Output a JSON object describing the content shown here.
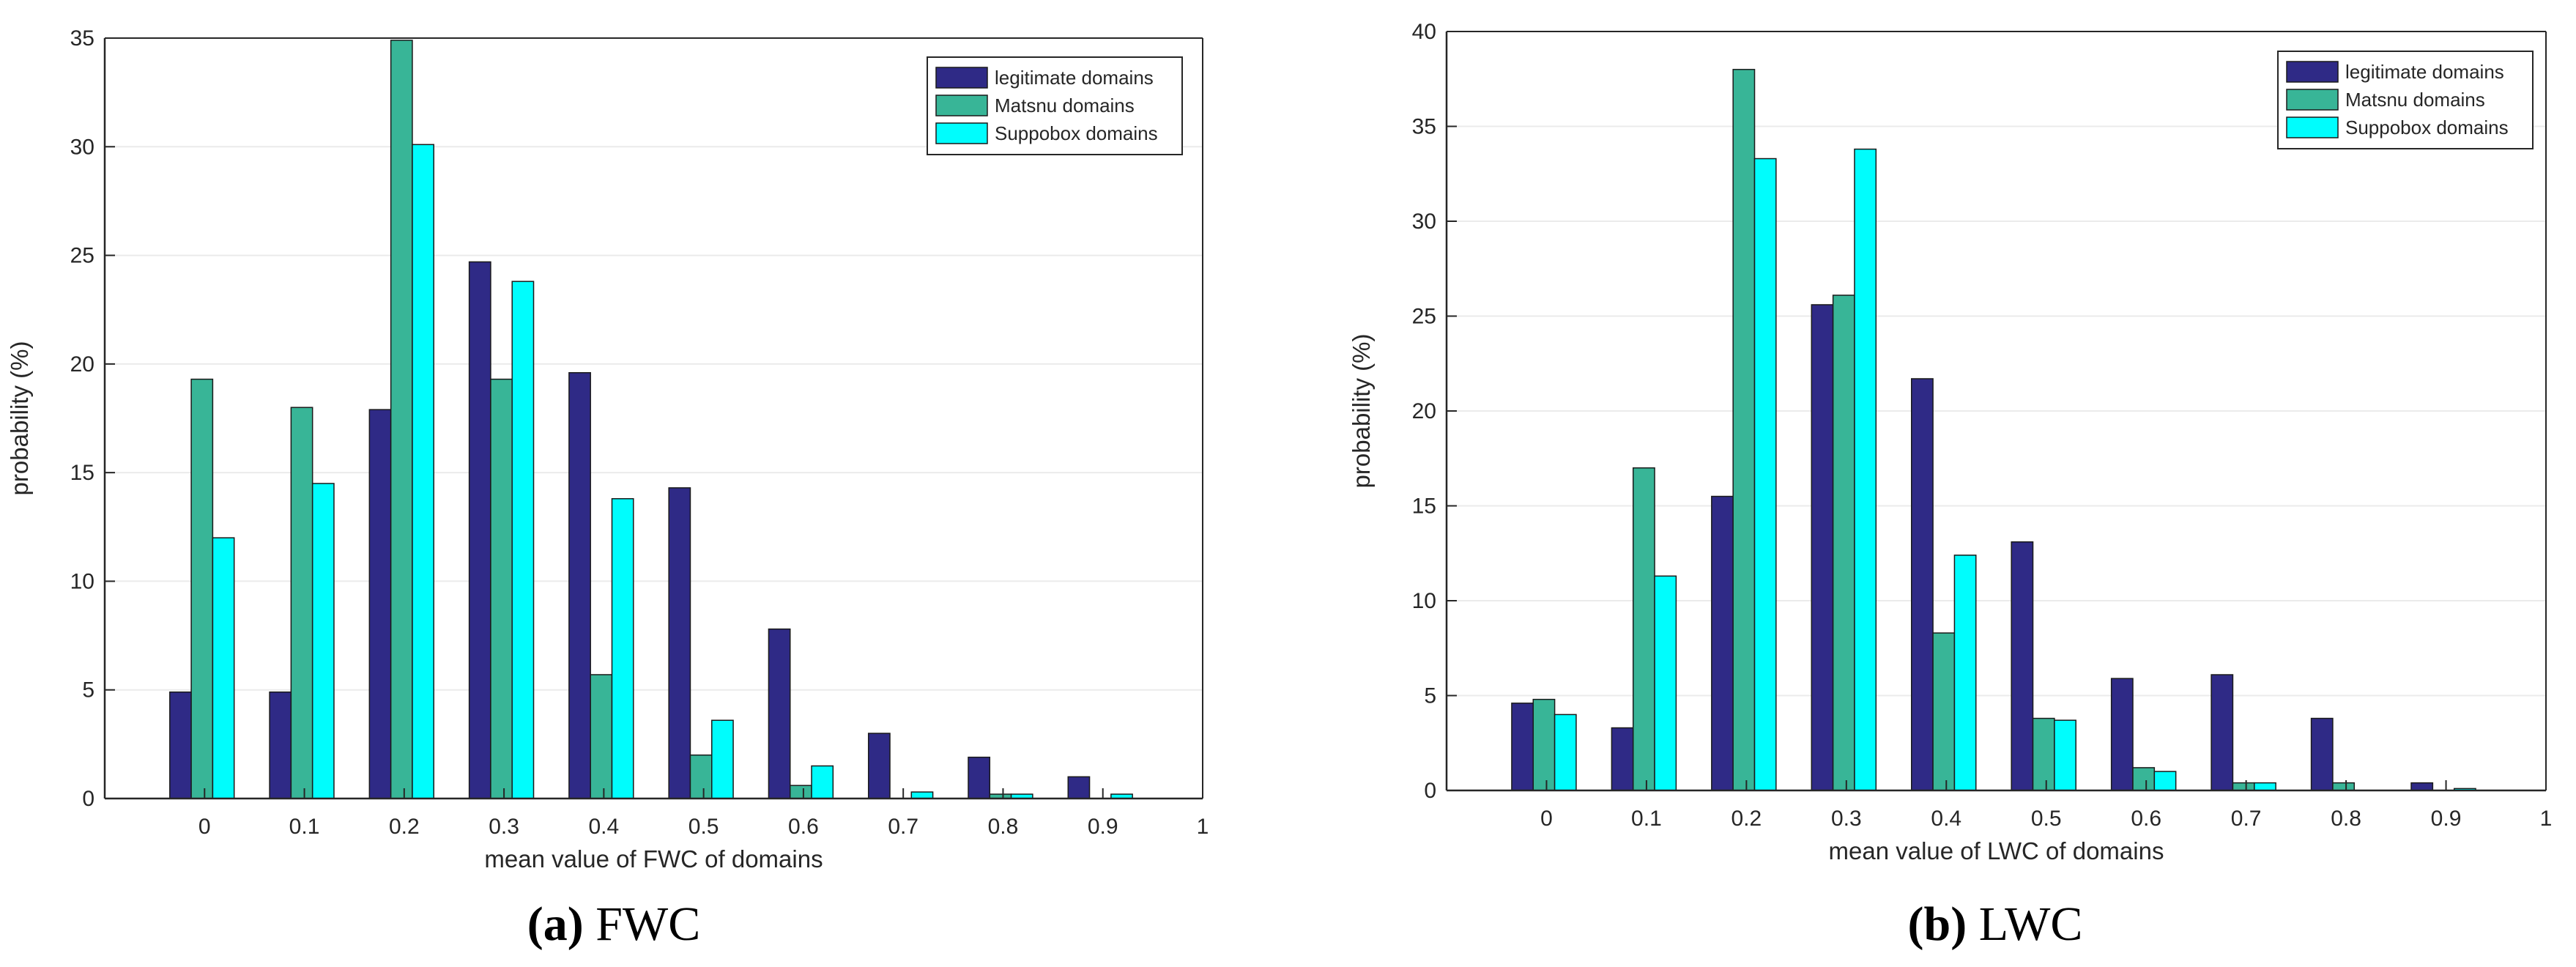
{
  "colors": {
    "legitimate": "#2f2a86",
    "matsnu": "#38b597",
    "suppobox": "#00fdfd",
    "grid": "#ebebeb",
    "axis": "#262626"
  },
  "chart_data": [
    {
      "type": "bar",
      "panel": "a",
      "caption_letter": "(a)",
      "caption_text": "FWC",
      "xlabel": "mean value of FWC of domains",
      "ylabel": "probability (%)",
      "xlim": [
        -0.1,
        1
      ],
      "ylim": [
        0,
        35
      ],
      "xticks": [
        0,
        0.1,
        0.2,
        0.3,
        0.4,
        0.5,
        0.6,
        0.7,
        0.8,
        0.9,
        1
      ],
      "xtick_labels": [
        "0",
        "0.1",
        "0.2",
        "0.3",
        "0.4",
        "0.5",
        "0.6",
        "0.7",
        "0.8",
        "0.9",
        "1"
      ],
      "yticks": [
        0,
        5,
        10,
        15,
        20,
        25,
        30,
        35
      ],
      "ytick_labels": [
        "0",
        "5",
        "10",
        "15",
        "20",
        "25",
        "30",
        "35"
      ],
      "grid": true,
      "legend_position": "top-right",
      "categories": [
        0,
        0.1,
        0.2,
        0.3,
        0.4,
        0.5,
        0.6,
        0.7,
        0.8,
        0.9
      ],
      "series": [
        {
          "name": "legitimate domains",
          "color_key": "legitimate",
          "values": [
            4.9,
            4.9,
            17.9,
            24.7,
            19.6,
            14.3,
            7.8,
            3.0,
            1.9,
            1.0
          ]
        },
        {
          "name": "Matsnu domains",
          "color_key": "matsnu",
          "values": [
            19.3,
            18.0,
            34.9,
            19.3,
            5.7,
            2.0,
            0.6,
            0.0,
            0.2,
            0.0
          ]
        },
        {
          "name": "Suppobox domains",
          "color_key": "suppobox",
          "values": [
            12.0,
            14.5,
            30.1,
            23.8,
            13.8,
            3.6,
            1.5,
            0.3,
            0.2,
            0.2
          ]
        }
      ]
    },
    {
      "type": "bar",
      "panel": "b",
      "caption_letter": "(b)",
      "caption_text": "LWC",
      "xlabel": "mean value of LWC of domains",
      "ylabel": "probability (%)",
      "xlim": [
        -0.1,
        1
      ],
      "ylim": [
        0,
        40
      ],
      "xticks": [
        0,
        0.1,
        0.2,
        0.3,
        0.4,
        0.5,
        0.6,
        0.7,
        0.8,
        0.9,
        1
      ],
      "xtick_labels": [
        "0",
        "0.1",
        "0.2",
        "0.3",
        "0.4",
        "0.5",
        "0.6",
        "0.7",
        "0.8",
        "0.9",
        "1"
      ],
      "yticks": [
        0,
        5,
        10,
        15,
        20,
        25,
        30,
        35,
        40
      ],
      "ytick_labels": [
        "0",
        "5",
        "10",
        "15",
        "20",
        "25",
        "30",
        "35",
        "40"
      ],
      "grid": true,
      "legend_position": "top-right",
      "categories": [
        0,
        0.1,
        0.2,
        0.3,
        0.4,
        0.5,
        0.6,
        0.7,
        0.8,
        0.9
      ],
      "series": [
        {
          "name": "legitimate domains",
          "color_key": "legitimate",
          "values": [
            4.6,
            3.3,
            15.5,
            25.6,
            21.7,
            13.1,
            5.9,
            6.1,
            3.8,
            0.4
          ]
        },
        {
          "name": "Matsnu domains",
          "color_key": "matsnu",
          "values": [
            4.8,
            17.0,
            38.0,
            26.1,
            8.3,
            3.8,
            1.2,
            0.4,
            0.4,
            0.0
          ]
        },
        {
          "name": "Suppobox domains",
          "color_key": "suppobox",
          "values": [
            4.0,
            11.3,
            33.3,
            33.8,
            12.4,
            3.7,
            1.0,
            0.4,
            0.0,
            0.1
          ]
        }
      ]
    }
  ]
}
